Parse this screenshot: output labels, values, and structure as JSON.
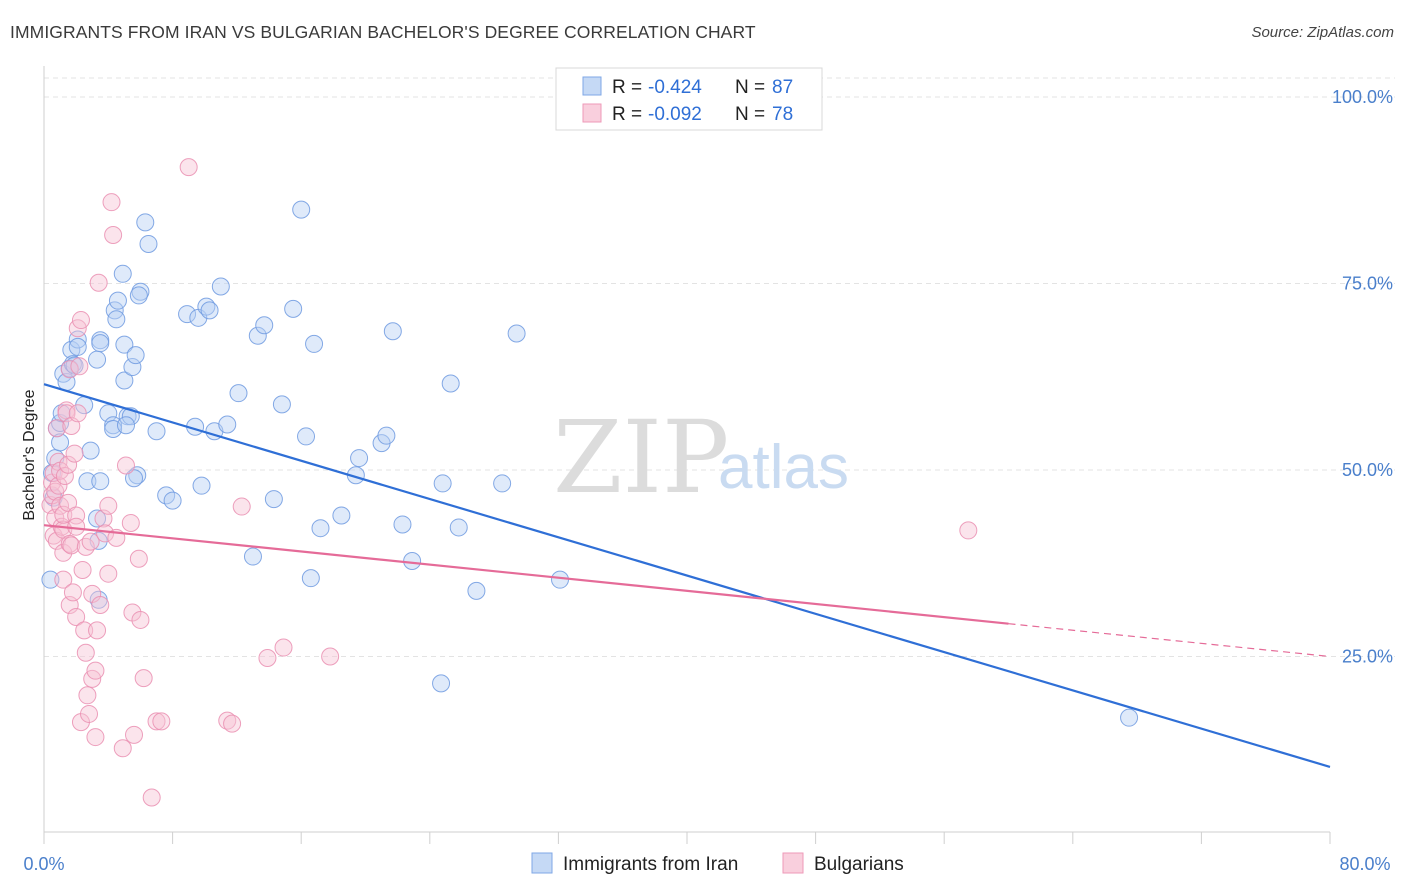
{
  "header": {
    "title": "IMMIGRANTS FROM IRAN VS BULGARIAN BACHELOR'S DEGREE CORRELATION CHART",
    "source": "Source: ZipAtlas.com"
  },
  "watermark": {
    "zip": "ZIP",
    "atlas": "atlas"
  },
  "legend": {
    "r_label": "R =",
    "n_label": "N =",
    "entries": [
      {
        "r": "-0.424",
        "n": "87"
      },
      {
        "r": "-0.092",
        "n": "78"
      }
    ]
  },
  "chart_data": {
    "type": "scatter",
    "title": "IMMIGRANTS FROM IRAN VS BULGARIAN BACHELOR'S DEGREE CORRELATION CHART",
    "xlabel": "",
    "ylabel": "Bachelor's Degree",
    "xlim": [
      0,
      80
    ],
    "ylim": [
      0,
      105
    ],
    "x_tick_labels": [
      "0.0%",
      "80.0%"
    ],
    "y_ticks": [
      25,
      50,
      75,
      100
    ],
    "y_tick_labels": [
      "25.0%",
      "50.0%",
      "75.0%",
      "100.0%"
    ],
    "grid": true,
    "legend_position": "top-center",
    "colors": {
      "iran": "#4a86e8",
      "bulgarians": "#ec7fa6",
      "iran_line": "#2f6fd6",
      "bulgarians_line": "#e56b98"
    },
    "series": [
      {
        "name": "Immigrants from Iran",
        "trend": {
          "x": [
            0,
            80
          ],
          "y": [
            61.5,
            10.2
          ]
        },
        "points": [
          [
            0.4,
            35.3
          ],
          [
            0.6,
            46.3
          ],
          [
            0.5,
            49.6
          ],
          [
            0.7,
            51.6
          ],
          [
            0.8,
            55.6
          ],
          [
            1.0,
            56.3
          ],
          [
            1.1,
            57.6
          ],
          [
            1.0,
            53.7
          ],
          [
            1.2,
            62.9
          ],
          [
            1.4,
            61.8
          ],
          [
            1.6,
            63.6
          ],
          [
            1.7,
            66.1
          ],
          [
            1.8,
            64.2
          ],
          [
            2.1,
            67.5
          ],
          [
            2.1,
            66.5
          ],
          [
            1.9,
            64.0
          ],
          [
            2.5,
            58.7
          ],
          [
            2.7,
            48.5
          ],
          [
            2.9,
            52.6
          ],
          [
            3.3,
            64.8
          ],
          [
            3.5,
            67.4
          ],
          [
            3.5,
            67.0
          ],
          [
            3.3,
            43.5
          ],
          [
            3.4,
            40.5
          ],
          [
            3.4,
            32.6
          ],
          [
            3.5,
            48.5
          ],
          [
            4.0,
            57.6
          ],
          [
            4.3,
            56.0
          ],
          [
            4.3,
            55.5
          ],
          [
            4.4,
            71.4
          ],
          [
            4.9,
            76.3
          ],
          [
            5.0,
            66.8
          ],
          [
            4.6,
            72.7
          ],
          [
            4.5,
            70.2
          ],
          [
            5.0,
            62.0
          ],
          [
            5.2,
            57.2
          ],
          [
            5.4,
            57.2
          ],
          [
            5.1,
            56.0
          ],
          [
            5.5,
            63.8
          ],
          [
            5.7,
            65.4
          ],
          [
            6.0,
            73.9
          ],
          [
            5.9,
            73.4
          ],
          [
            6.3,
            83.2
          ],
          [
            5.8,
            49.3
          ],
          [
            5.6,
            48.9
          ],
          [
            6.5,
            80.3
          ],
          [
            7.0,
            55.2
          ],
          [
            7.6,
            46.6
          ],
          [
            8.0,
            45.9
          ],
          [
            8.9,
            70.9
          ],
          [
            9.4,
            55.8
          ],
          [
            9.6,
            70.4
          ],
          [
            9.8,
            47.9
          ],
          [
            10.1,
            71.9
          ],
          [
            10.3,
            71.4
          ],
          [
            10.6,
            55.2
          ],
          [
            11.0,
            74.6
          ],
          [
            11.4,
            56.1
          ],
          [
            12.1,
            60.3
          ],
          [
            13.0,
            38.4
          ],
          [
            13.3,
            68.0
          ],
          [
            13.7,
            69.4
          ],
          [
            14.3,
            46.1
          ],
          [
            14.8,
            58.8
          ],
          [
            15.5,
            71.6
          ],
          [
            16.0,
            84.9
          ],
          [
            16.3,
            54.5
          ],
          [
            16.6,
            35.5
          ],
          [
            16.8,
            66.9
          ],
          [
            17.2,
            42.2
          ],
          [
            18.5,
            43.9
          ],
          [
            19.4,
            49.3
          ],
          [
            19.6,
            51.6
          ],
          [
            21.0,
            53.6
          ],
          [
            21.3,
            54.6
          ],
          [
            21.7,
            68.6
          ],
          [
            22.3,
            42.7
          ],
          [
            22.9,
            37.8
          ],
          [
            24.7,
            21.4
          ],
          [
            24.8,
            48.2
          ],
          [
            25.8,
            42.3
          ],
          [
            25.3,
            61.6
          ],
          [
            26.9,
            33.8
          ],
          [
            28.5,
            48.2
          ],
          [
            29.4,
            68.3
          ],
          [
            32.1,
            35.3
          ],
          [
            67.5,
            16.8
          ]
        ]
      },
      {
        "name": "Bulgarians",
        "trend": {
          "x": [
            0,
            60
          ],
          "y": [
            42.6,
            29.4
          ]
        },
        "trend_dashed": {
          "x": [
            60,
            80
          ],
          "y": [
            29.4,
            25.0
          ]
        },
        "points": [
          [
            0.4,
            45.3
          ],
          [
            0.5,
            46.6
          ],
          [
            0.5,
            48.3
          ],
          [
            0.6,
            49.6
          ],
          [
            0.6,
            41.2
          ],
          [
            0.7,
            43.6
          ],
          [
            0.7,
            47.1
          ],
          [
            0.9,
            47.9
          ],
          [
            0.9,
            51.1
          ],
          [
            0.8,
            55.6
          ],
          [
            0.8,
            40.5
          ],
          [
            1.0,
            45.2
          ],
          [
            1.0,
            49.9
          ],
          [
            1.1,
            42.4
          ],
          [
            1.2,
            42.0
          ],
          [
            1.2,
            44.0
          ],
          [
            1.3,
            49.2
          ],
          [
            1.2,
            38.9
          ],
          [
            1.2,
            35.3
          ],
          [
            1.4,
            58.0
          ],
          [
            1.4,
            57.6
          ],
          [
            1.5,
            50.7
          ],
          [
            1.6,
            63.5
          ],
          [
            1.5,
            45.6
          ],
          [
            1.6,
            40.1
          ],
          [
            1.6,
            31.9
          ],
          [
            1.7,
            39.9
          ],
          [
            1.8,
            33.6
          ],
          [
            1.7,
            55.9
          ],
          [
            1.9,
            52.2
          ],
          [
            2.0,
            43.9
          ],
          [
            2.0,
            30.3
          ],
          [
            2.0,
            42.4
          ],
          [
            2.1,
            69.0
          ],
          [
            2.1,
            57.6
          ],
          [
            2.2,
            63.9
          ],
          [
            2.3,
            70.1
          ],
          [
            2.3,
            16.2
          ],
          [
            2.4,
            36.6
          ],
          [
            2.5,
            28.5
          ],
          [
            2.6,
            25.5
          ],
          [
            2.6,
            39.7
          ],
          [
            2.7,
            19.8
          ],
          [
            2.8,
            17.3
          ],
          [
            2.9,
            40.4
          ],
          [
            3.0,
            22.0
          ],
          [
            3.0,
            33.4
          ],
          [
            3.2,
            14.2
          ],
          [
            3.2,
            23.1
          ],
          [
            3.3,
            28.5
          ],
          [
            3.4,
            75.1
          ],
          [
            3.5,
            31.9
          ],
          [
            3.7,
            43.5
          ],
          [
            3.8,
            41.5
          ],
          [
            4.0,
            45.2
          ],
          [
            4.0,
            36.1
          ],
          [
            4.2,
            85.9
          ],
          [
            4.3,
            81.5
          ],
          [
            4.5,
            40.9
          ],
          [
            4.9,
            12.7
          ],
          [
            5.1,
            50.6
          ],
          [
            5.4,
            42.9
          ],
          [
            5.5,
            30.9
          ],
          [
            5.6,
            14.5
          ],
          [
            5.9,
            38.1
          ],
          [
            6.0,
            29.9
          ],
          [
            6.2,
            22.1
          ],
          [
            6.7,
            6.1
          ],
          [
            7.0,
            16.3
          ],
          [
            7.3,
            16.3
          ],
          [
            9.0,
            90.6
          ],
          [
            11.4,
            16.4
          ],
          [
            11.7,
            16.0
          ],
          [
            12.3,
            45.1
          ],
          [
            13.9,
            24.8
          ],
          [
            14.9,
            26.2
          ],
          [
            17.8,
            25.0
          ],
          [
            57.5,
            41.9
          ]
        ]
      }
    ]
  },
  "bottom_legend": [
    {
      "label": "Immigrants from Iran"
    },
    {
      "label": "Bulgarians"
    }
  ]
}
